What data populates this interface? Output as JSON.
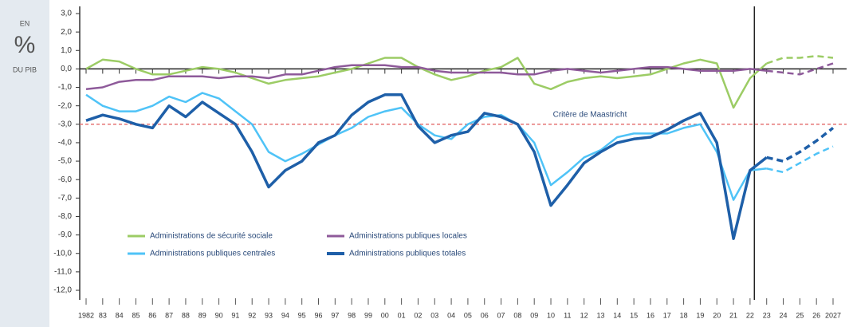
{
  "chart_data": {
    "type": "line",
    "unit_top": "EN",
    "unit_main": "%",
    "unit_bottom": "DU PIB",
    "categories": [
      "1982",
      "83",
      "84",
      "85",
      "86",
      "87",
      "88",
      "89",
      "90",
      "91",
      "92",
      "93",
      "94",
      "95",
      "96",
      "97",
      "98",
      "99",
      "00",
      "01",
      "02",
      "03",
      "04",
      "05",
      "06",
      "07",
      "08",
      "09",
      "10",
      "11",
      "12",
      "13",
      "14",
      "15",
      "16",
      "17",
      "18",
      "19",
      "20",
      "21",
      "22",
      "23",
      "24",
      "25",
      "26",
      "2027"
    ],
    "forecast_start": "23",
    "series": [
      {
        "name": "Administrations de sécurité sociale",
        "color": "#9ccc65",
        "values": [
          0.0,
          0.5,
          0.4,
          0.0,
          -0.3,
          -0.3,
          -0.1,
          0.1,
          0.0,
          -0.2,
          -0.5,
          -0.8,
          -0.6,
          -0.5,
          -0.4,
          -0.2,
          0.0,
          0.3,
          0.6,
          0.6,
          0.1,
          -0.3,
          -0.6,
          -0.4,
          -0.1,
          0.1,
          0.6,
          -0.8,
          -1.1,
          -0.7,
          -0.5,
          -0.4,
          -0.5,
          -0.4,
          -0.3,
          0.0,
          0.3,
          0.5,
          0.3,
          -2.1,
          -0.5,
          0.3,
          0.6,
          0.6,
          0.7,
          0.6
        ]
      },
      {
        "name": "Administrations publiques locales",
        "color": "#8e5a9a",
        "values": [
          -1.1,
          -1.0,
          -0.7,
          -0.6,
          -0.6,
          -0.4,
          -0.4,
          -0.4,
          -0.5,
          -0.4,
          -0.4,
          -0.5,
          -0.3,
          -0.3,
          -0.1,
          0.1,
          0.2,
          0.2,
          0.2,
          0.1,
          0.1,
          -0.1,
          -0.2,
          -0.2,
          -0.2,
          -0.2,
          -0.3,
          -0.3,
          -0.1,
          0.0,
          -0.1,
          -0.2,
          -0.1,
          0.0,
          0.1,
          0.1,
          0.0,
          -0.1,
          -0.1,
          -0.1,
          0.0,
          -0.1,
          -0.2,
          -0.3,
          0.0,
          0.3
        ]
      },
      {
        "name": "Administrations publiques centrales",
        "color": "#4fc3f7",
        "values": [
          -1.4,
          -2.0,
          -2.3,
          -2.3,
          -2.0,
          -1.5,
          -1.8,
          -1.3,
          -1.6,
          -2.3,
          -3.0,
          -4.5,
          -5.0,
          -4.6,
          -4.1,
          -3.6,
          -3.2,
          -2.6,
          -2.3,
          -2.1,
          -3.0,
          -3.6,
          -3.8,
          -3.0,
          -2.6,
          -2.5,
          -3.0,
          -4.0,
          -6.3,
          -5.6,
          -4.8,
          -4.4,
          -3.7,
          -3.5,
          -3.5,
          -3.5,
          -3.2,
          -3.0,
          -4.5,
          -7.1,
          -5.5,
          -5.4,
          -5.6,
          -5.1,
          -4.6,
          -4.2
        ]
      },
      {
        "name": "Administrations publiques totales",
        "color": "#1e5fa8",
        "values": [
          -2.8,
          -2.5,
          -2.7,
          -3.0,
          -3.2,
          -2.0,
          -2.6,
          -1.8,
          -2.4,
          -3.0,
          -4.5,
          -6.4,
          -5.5,
          -5.0,
          -4.0,
          -3.6,
          -2.5,
          -1.8,
          -1.4,
          -1.4,
          -3.1,
          -4.0,
          -3.6,
          -3.4,
          -2.4,
          -2.6,
          -3.0,
          -4.5,
          -7.4,
          -6.3,
          -5.1,
          -4.5,
          -4.0,
          -3.8,
          -3.7,
          -3.3,
          -2.8,
          -2.4,
          -4.0,
          -9.2,
          -5.5,
          -4.8,
          -5.0,
          -4.5,
          -3.9,
          -3.2
        ]
      }
    ],
    "reference_line": {
      "text": "Critère de Maastricht",
      "value": -3,
      "color": "#e57373"
    },
    "ylim": [
      -12,
      3
    ],
    "yticks": [
      {
        "value": 3,
        "label": "3,0"
      },
      {
        "value": 2,
        "label": "2,0"
      },
      {
        "value": 1,
        "label": "1,0"
      },
      {
        "value": 0,
        "label": "0,0"
      },
      {
        "value": -1,
        "label": "-1,0"
      },
      {
        "value": -2,
        "label": "-2,0"
      },
      {
        "value": -3,
        "label": "-3,0"
      },
      {
        "value": -4,
        "label": "-4,0"
      },
      {
        "value": -5,
        "label": "-5,0"
      },
      {
        "value": -6,
        "label": "-6,0"
      },
      {
        "value": -7,
        "label": "-7,0"
      },
      {
        "value": -8,
        "label": "-8,0"
      },
      {
        "value": -9,
        "label": "-9,0"
      },
      {
        "value": -10,
        "label": "-10,0"
      },
      {
        "value": -11,
        "label": "-11,0"
      },
      {
        "value": -12,
        "label": "-12,0"
      }
    ]
  }
}
